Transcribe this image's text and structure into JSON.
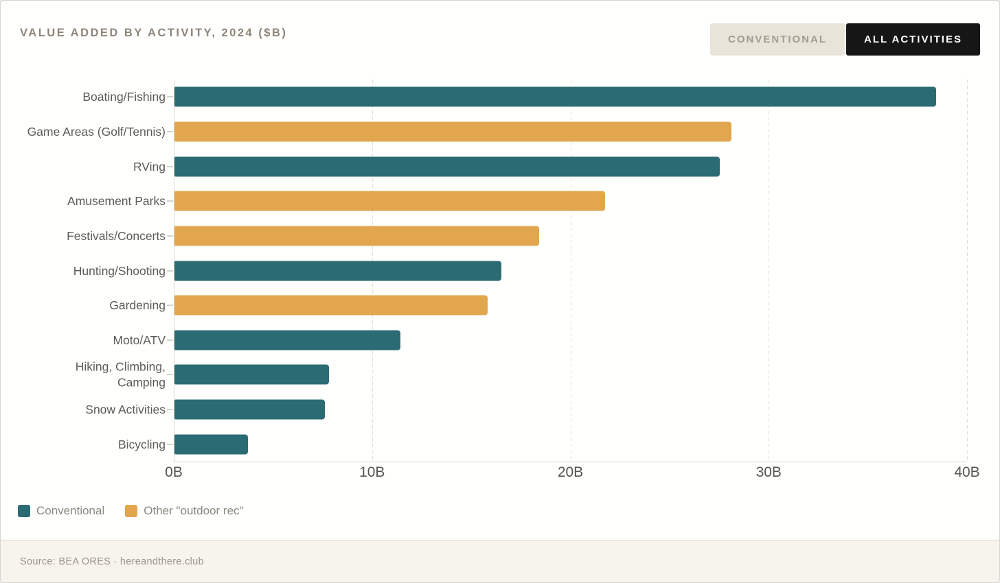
{
  "header": {
    "title": "VALUE ADDED BY ACTIVITY, 2024 ($B)"
  },
  "toggle": {
    "options": [
      {
        "label": "CONVENTIONAL",
        "active": false
      },
      {
        "label": "ALL ACTIVITIES",
        "active": true
      }
    ]
  },
  "chart_data": {
    "type": "bar",
    "orientation": "horizontal",
    "title": "VALUE ADDED BY ACTIVITY, 2024 ($B)",
    "categories": [
      "Boating/Fishing",
      "Game Areas (Golf/Tennis)",
      "RVing",
      "Amusement Parks",
      "Festivals/Concerts",
      "Hunting/Shooting",
      "Gardening",
      "Moto/ATV",
      "Hiking, Climbing,\nCamping",
      "Snow Activities",
      "Bicycling"
    ],
    "values": [
      38.4,
      28.1,
      27.5,
      21.7,
      18.4,
      16.5,
      15.8,
      11.4,
      7.8,
      7.6,
      3.7
    ],
    "bar_series": [
      "conventional",
      "other",
      "conventional",
      "other",
      "other",
      "conventional",
      "other",
      "conventional",
      "conventional",
      "conventional",
      "conventional"
    ],
    "colors": {
      "conventional": "#2B6B74",
      "other": "#E1A64E"
    },
    "xlim": [
      0,
      40
    ],
    "x_ticks": [
      {
        "value": 0,
        "label": "0B"
      },
      {
        "value": 10,
        "label": "10B"
      },
      {
        "value": 20,
        "label": "20B"
      },
      {
        "value": 30,
        "label": "30B"
      },
      {
        "value": 40,
        "label": "40B"
      }
    ],
    "grid": "vertical-dashed",
    "legend_position": "bottom-left",
    "legend": [
      {
        "key": "conventional",
        "label": "Conventional",
        "color": "#2B6B74"
      },
      {
        "key": "other",
        "label": "Other \"outdoor rec\"",
        "color": "#E1A64E"
      }
    ]
  },
  "footer": {
    "source": "Source: BEA ORES · hereandthere.club"
  }
}
